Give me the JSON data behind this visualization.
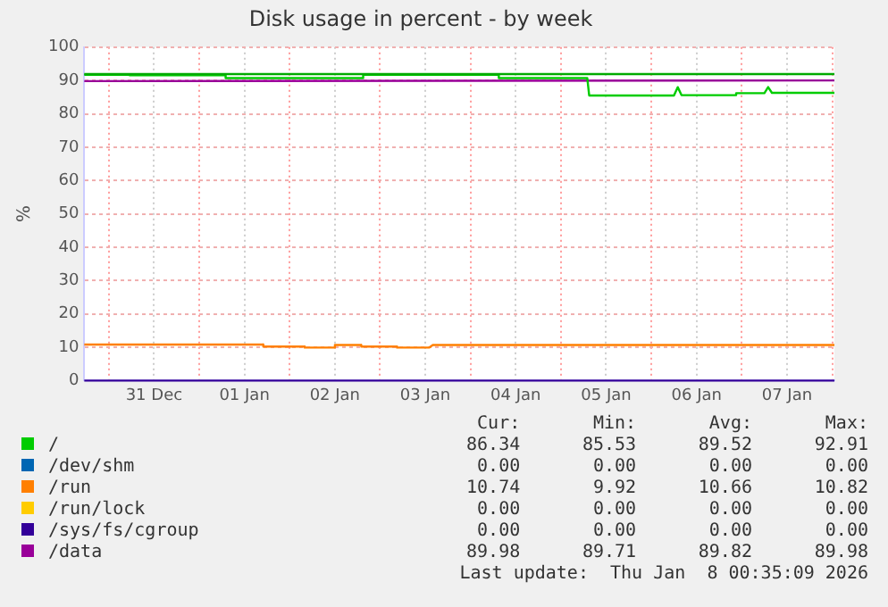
{
  "chart_data": {
    "type": "line",
    "title": "Disk usage in percent - by week",
    "ylabel": "%",
    "xlim": [
      "2025-12-30T17:30",
      "2026-01-08T00:35"
    ],
    "xticks": [
      {
        "value": "2025-12-31T00:00",
        "label": null
      },
      {
        "value": "2025-12-31T12:00",
        "label": "31 Dec"
      },
      {
        "value": "2026-01-01T00:00",
        "label": null
      },
      {
        "value": "2026-01-01T12:00",
        "label": "01 Jan"
      },
      {
        "value": "2026-01-02T00:00",
        "label": null
      },
      {
        "value": "2026-01-02T12:00",
        "label": "02 Jan"
      },
      {
        "value": "2026-01-03T00:00",
        "label": null
      },
      {
        "value": "2026-01-03T12:00",
        "label": "03 Jan"
      },
      {
        "value": "2026-01-04T00:00",
        "label": null
      },
      {
        "value": "2026-01-04T12:00",
        "label": "04 Jan"
      },
      {
        "value": "2026-01-05T00:00",
        "label": null
      },
      {
        "value": "2026-01-05T12:00",
        "label": "05 Jan"
      },
      {
        "value": "2026-01-06T00:00",
        "label": null
      },
      {
        "value": "2026-01-06T12:00",
        "label": "06 Jan"
      },
      {
        "value": "2026-01-07T00:00",
        "label": null
      },
      {
        "value": "2026-01-07T12:00",
        "label": "07 Jan"
      },
      {
        "value": "2026-01-08T00:00",
        "label": null
      }
    ],
    "ylim": [
      0,
      100
    ],
    "yticks": [
      0,
      10,
      20,
      30,
      40,
      50,
      60,
      70,
      80,
      90,
      100
    ],
    "grid": true,
    "legend": "bottom",
    "marker": "none",
    "line_style": "solid",
    "series": [
      {
        "color": "#00aa00",
        "x": [
          "2025-12-30T17:30",
          "2026-01-08T00:35"
        ],
        "values": [
          91.9,
          91.9
        ]
      },
      {
        "name": "/",
        "color": "#00cc00",
        "x": [
          "2025-12-30T17:30",
          "2025-12-31T05:30",
          "2025-12-31T05:31",
          "2026-01-01T07:00",
          "2026-01-01T07:01",
          "2026-01-02T19:30",
          "2026-01-02T19:31",
          "2026-01-04T07:30",
          "2026-01-04T07:31",
          "2026-01-05T07:00",
          "2026-01-05T07:30",
          "2026-01-06T06:00",
          "2026-01-06T07:00",
          "2026-01-06T08:00",
          "2026-01-06T22:30",
          "2026-01-06T22:31",
          "2026-01-07T06:00",
          "2026-01-07T07:00",
          "2026-01-07T08:00",
          "2026-01-08T00:35"
        ],
        "values": [
          91.7,
          91.7,
          91.6,
          91.6,
          90.7,
          90.7,
          91.7,
          91.7,
          90.7,
          90.7,
          85.5,
          85.5,
          88,
          85.6,
          85.6,
          86.2,
          86.2,
          88,
          86.3,
          86.3
        ]
      },
      {
        "name": "/dev/shm",
        "color": "#0066b3"
      },
      {
        "name": "/run",
        "color": "#ff7f00",
        "x": [
          "2025-12-30T17:30",
          "2026-01-01T17:00",
          "2026-01-01T17:01",
          "2026-01-02T04:00",
          "2026-01-02T04:01",
          "2026-01-02T12:00",
          "2026-01-02T12:01",
          "2026-01-02T19:00",
          "2026-01-02T19:01",
          "2026-01-03T04:30",
          "2026-01-03T04:31",
          "2026-01-03T13:00",
          "2026-01-03T14:00",
          "2026-01-08T00:35"
        ],
        "values": [
          10.8,
          10.8,
          10.2,
          10.2,
          9.9,
          9.9,
          10.7,
          10.7,
          10.2,
          10.2,
          9.9,
          9.9,
          10.7,
          10.7
        ]
      },
      {
        "name": "/run/lock",
        "color": "#ffcc00"
      },
      {
        "name": "/sys/fs/cgroup",
        "color": "#330099",
        "x": [
          "2025-12-30T17:30",
          "2026-01-08T00:35"
        ],
        "values": [
          0,
          0
        ]
      },
      {
        "name": "/data",
        "color": "#990099",
        "x": [
          "2025-12-30T17:30",
          "2026-01-08T00:35"
        ],
        "values": [
          89.8,
          90.0
        ]
      }
    ],
    "annotations": [
      "Cur:",
      "Min:",
      "Avg:",
      "Max:",
      "86.34",
      "85.53",
      "89.52",
      "92.91",
      "0.00",
      "0.00",
      "0.00",
      "0.00",
      "10.74",
      "9.92",
      "10.66",
      "10.82",
      "0.00",
      "0.00",
      "0.00",
      "0.00",
      "0.00",
      "0.00",
      "0.00",
      "0.00",
      "89.98",
      "89.71",
      "89.82",
      "89.98",
      "Last update:  Thu Jan  8 00:35:09 2026"
    ]
  }
}
